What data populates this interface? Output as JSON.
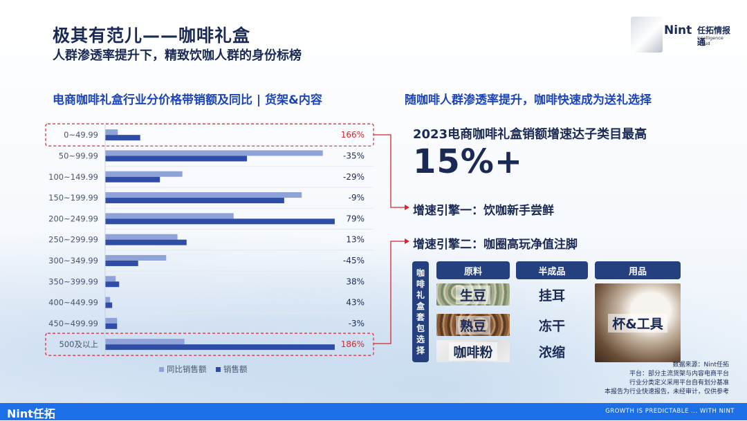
{
  "header": {
    "title": "极其有范儿——咖啡礼盒",
    "subtitle": "人群渗透率提升下，精致饮咖人群的身份标榜"
  },
  "logo": {
    "name": "Nint",
    "cn": "任拓情报通",
    "en": "Intelligence Cloud"
  },
  "left_section_title": "电商咖啡礼盒行业分价格带销额及同比 | 货架&内容",
  "right_section_title": "随咖啡人群渗透率提升，咖啡快速成为送礼选择",
  "highlight": {
    "title": "2023电商咖啡礼盒销额增速达子类目最高",
    "value": "15%+",
    "engine1": "增速引擎一：饮咖新手尝鲜",
    "engine2": "增速引擎二：咖圈高玩净值注脚"
  },
  "gift_box": {
    "vertical_label": [
      "咖",
      "啡",
      "礼",
      "盒",
      "套",
      "包",
      "选",
      "择"
    ],
    "columns": [
      "原料",
      "半成品",
      "用品"
    ],
    "raw": [
      "生豆",
      "熟豆",
      "咖啡粉"
    ],
    "semi": [
      "挂耳",
      "冻干",
      "浓缩"
    ],
    "tools": "杯&工具"
  },
  "chart_data": {
    "type": "bar",
    "orientation": "horizontal",
    "categories": [
      "0~49.99",
      "50~99.99",
      "100~149.99",
      "150~199.99",
      "200~249.99",
      "250~299.99",
      "300~349.99",
      "350~399.99",
      "400~449.99",
      "450~499.99",
      "500及以上"
    ],
    "series": [
      {
        "name": "同比销售额",
        "values": [
          18,
          310,
          110,
          280,
          183,
          103,
          87,
          15,
          7,
          17,
          113
        ],
        "color": "#8fa3d9"
      },
      {
        "name": "销售额",
        "values": [
          50,
          202,
          78,
          255,
          327,
          116,
          47,
          20,
          10,
          17,
          327
        ],
        "color": "#2f4da6"
      }
    ],
    "growth_labels": [
      "166%",
      "-35%",
      "-29%",
      "-9%",
      "79%",
      "13%",
      "-45%",
      "38%",
      "43%",
      "-3%",
      "186%"
    ],
    "highlighted": [
      "0~49.99",
      "500及以上"
    ],
    "highlight_color": "#d9252b",
    "xlim": [
      0,
      330
    ],
    "grid": "horizontal lines",
    "legend": "bottom"
  },
  "source": {
    "lines": [
      "数据来源：Nint任拓",
      "平台：部分主流货架与内容电商平台",
      "行业分类定义采用平台自有划分基准",
      "本报告为行业快速报告，未经审计，仅供参考"
    ]
  },
  "footer": {
    "brand": "Nint任拓",
    "slogan": "GROWTH IS PREDICTABLE ... WITH NINT"
  },
  "colors": {
    "accent": "#1d45b8",
    "navy": "#25407f",
    "footer": "#1d6fe8"
  }
}
